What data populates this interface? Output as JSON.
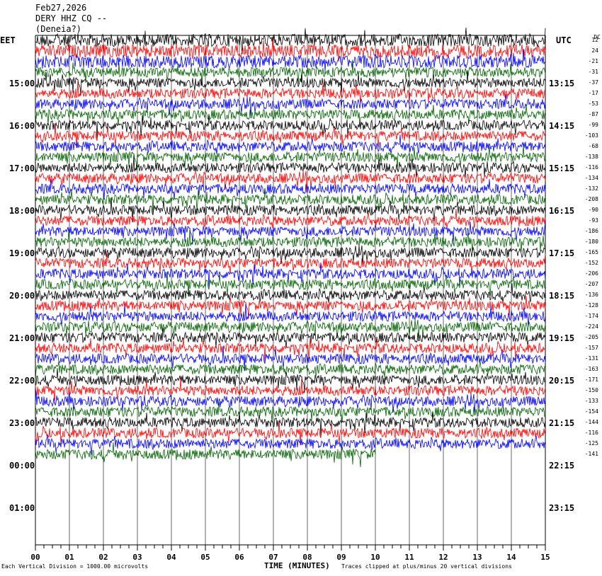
{
  "header": {
    "date": "Feb27,2026",
    "station": "DERY HHZ CQ --",
    "location": "(Deneia?)"
  },
  "left_zone": "EET",
  "right_zone": "UTC",
  "dc_label": "DC",
  "footer": {
    "left_note": "Each Vertical Division = 1000.00 microvolts",
    "xlabel": "TIME (MINUTES)",
    "right_note": "Traces clipped at plus/minus 20 vertical divisions"
  },
  "chart_data": {
    "type": "line",
    "xlabel": "TIME (MINUTES)",
    "xlim": [
      0,
      15
    ],
    "x_ticks": [
      "00",
      "01",
      "02",
      "03",
      "04",
      "05",
      "06",
      "07",
      "08",
      "09",
      "10",
      "11",
      "12",
      "13",
      "14",
      "15"
    ],
    "hour_labels_left": [
      "15:00",
      "16:00",
      "17:00",
      "18:00",
      "19:00",
      "20:00",
      "21:00",
      "22:00",
      "23:00",
      "00:00",
      "01:00"
    ],
    "hour_labels_right": [
      "13:15",
      "14:15",
      "15:15",
      "16:15",
      "17:15",
      "18:15",
      "19:15",
      "20:15",
      "21:15",
      "22:15",
      "23:15"
    ],
    "dc_offsets": [
      "12",
      "24",
      "-21",
      "-31",
      "-37",
      "-17",
      "-53",
      "-87",
      "-99",
      "-103",
      "-68",
      "-138",
      "-116",
      "-134",
      "-132",
      "-208",
      "-90",
      "-93",
      "-186",
      "-180",
      "-165",
      "-152",
      "-206",
      "-207",
      "-136",
      "-128",
      "-174",
      "-224",
      "-205",
      "-157",
      "-131",
      "-163",
      "-171",
      "-150",
      "-133",
      "-154",
      "-144",
      "-116",
      "-125",
      "-141"
    ],
    "trace_colors": [
      "#000000",
      "#ff0000",
      "#0000ff",
      "#006400"
    ],
    "trace_count": 40,
    "last_trace_minutes": 10,
    "grid": "vertical lines each minute"
  }
}
